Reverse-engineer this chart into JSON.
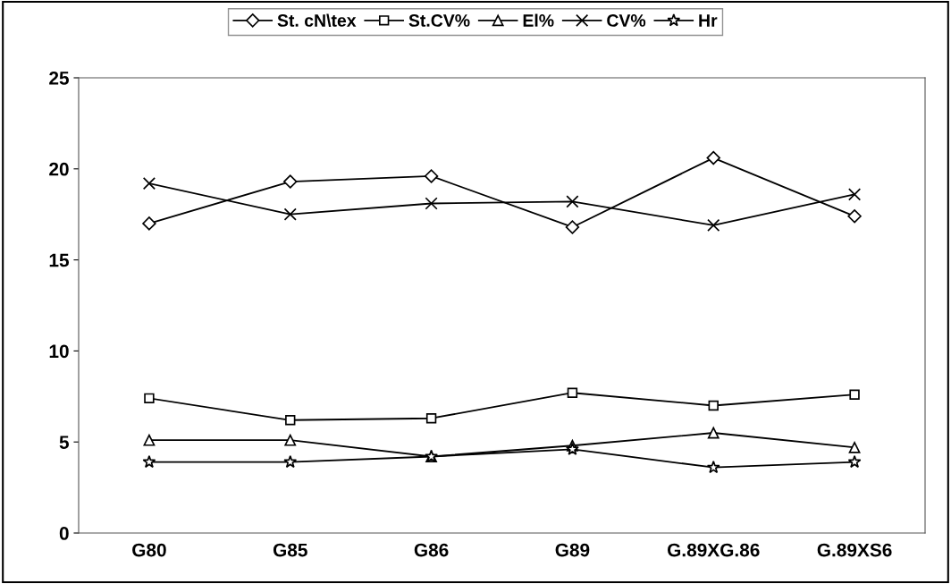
{
  "chart_data": {
    "type": "line",
    "categories": [
      "G80",
      "G85",
      "G86",
      "G89",
      "G.89XG.86",
      "G.89XS6"
    ],
    "series": [
      {
        "name": "St. cN\\tex",
        "color": "#000000",
        "marker": "diamond",
        "values": [
          17.0,
          19.3,
          19.6,
          16.8,
          20.6,
          17.4
        ]
      },
      {
        "name": "St.CV%",
        "color": "#000000",
        "marker": "square",
        "values": [
          7.4,
          6.2,
          6.3,
          7.7,
          7.0,
          7.6
        ]
      },
      {
        "name": "El%",
        "color": "#000000",
        "marker": "triangle",
        "values": [
          5.1,
          5.1,
          4.2,
          4.8,
          5.5,
          4.7
        ]
      },
      {
        "name": "CV%",
        "color": "#000000",
        "marker": "cross",
        "values": [
          19.2,
          17.5,
          18.1,
          18.2,
          16.9,
          18.6
        ]
      },
      {
        "name": "Hr",
        "color": "#000000",
        "marker": "star",
        "values": [
          3.9,
          3.9,
          4.2,
          4.6,
          3.6,
          3.9
        ]
      }
    ],
    "ylim": [
      0,
      25
    ],
    "yticks": [
      0,
      5,
      10,
      15,
      20,
      25
    ],
    "grid": false,
    "legend": "top",
    "line_style": "solid"
  }
}
